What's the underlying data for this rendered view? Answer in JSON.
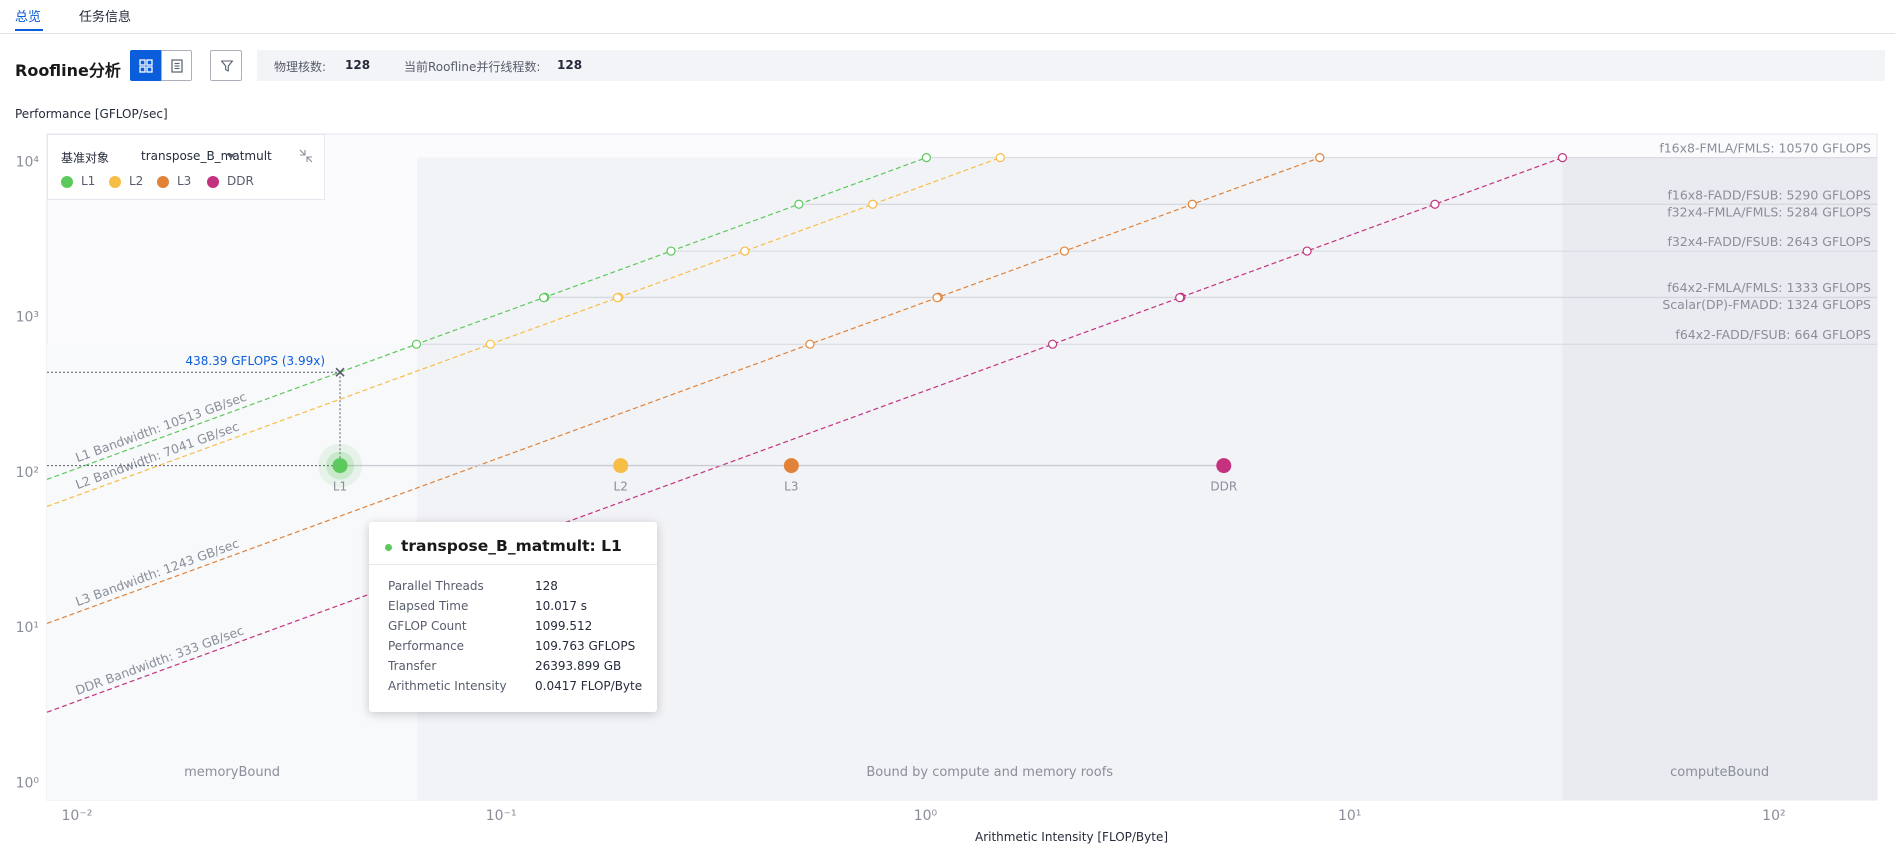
{
  "tabs": [
    {
      "label": "总览",
      "active": true
    },
    {
      "label": "任务信息",
      "active": false
    }
  ],
  "header": {
    "title": "Roofline分析",
    "view_buttons": [
      {
        "icon": "grid-view-icon",
        "active": true
      },
      {
        "icon": "list-view-icon",
        "active": false
      }
    ],
    "filter_icon": "filter-icon",
    "info": {
      "physical_cores_label": "物理核数:",
      "physical_cores_value": "128",
      "threads_label": "当前Roofline并行线程数:",
      "threads_value": "128"
    }
  },
  "legend": {
    "ref_label": "基准对象",
    "ref_value": "transpose_B_matmult",
    "collapse_icon": "collapse-icon",
    "items": [
      {
        "label": "L1",
        "color": "#5cc95c"
      },
      {
        "label": "L2",
        "color": "#f7be45"
      },
      {
        "label": "L3",
        "color": "#e08339"
      },
      {
        "label": "DDR",
        "color": "#c4327f"
      }
    ]
  },
  "tooltip": {
    "title": "transpose_B_matmult: L1",
    "dot_color": "#5cc95c",
    "rows": [
      {
        "key": "Parallel Threads",
        "value": "128"
      },
      {
        "key": "Elapsed Time",
        "value": "10.017 s"
      },
      {
        "key": "GFLOP Count",
        "value": "1099.512"
      },
      {
        "key": "Performance",
        "value": "109.763 GFLOPS"
      },
      {
        "key": "Transfer",
        "value": "26393.899 GB"
      },
      {
        "key": "Arithmetic Intensity",
        "value": "0.0417 FLOP/Byte"
      }
    ]
  },
  "chart_data": {
    "type": "scatter",
    "scale": "log-log",
    "xlabel": "Arithmetic Intensity [FLOP/Byte]",
    "ylabel": "Performance [GFLOP/sec]",
    "xlim": [
      0.0085,
      175
    ],
    "ylim": [
      0.77,
      15000
    ],
    "x_ticks": [
      {
        "value": 0.01,
        "label": "10⁻²"
      },
      {
        "value": 0.1,
        "label": "10⁻¹"
      },
      {
        "value": 1,
        "label": "10⁰"
      },
      {
        "value": 10,
        "label": "10¹"
      },
      {
        "value": 100,
        "label": "10²"
      }
    ],
    "y_ticks": [
      {
        "value": 1,
        "label": "10⁰"
      },
      {
        "value": 10,
        "label": "10¹"
      },
      {
        "value": 100,
        "label": "10²"
      },
      {
        "value": 1000,
        "label": "10³"
      },
      {
        "value": 10000,
        "label": "10⁴"
      }
    ],
    "bandwidths": [
      {
        "name": "L1",
        "label": "L1 Bandwidth: 10513 GB/sec",
        "gbps": 10513,
        "color": "#5cc95c"
      },
      {
        "name": "L2",
        "label": "L2 Bandwidth: 7041 GB/sec",
        "gbps": 7041,
        "color": "#f7be45"
      },
      {
        "name": "L3",
        "label": "L3 Bandwidth: 1243 GB/sec",
        "gbps": 1243,
        "color": "#e08339"
      },
      {
        "name": "DDR",
        "label": "DDR Bandwidth: 333 GB/sec",
        "gbps": 333,
        "color": "#c4327f"
      }
    ],
    "roofs": [
      {
        "label": "f16x8-FMLA/FMLS: 10570 GFLOPS",
        "gflops": 10570
      },
      {
        "label": "f16x8-FADD/FSUB: 5290 GFLOPS",
        "gflops": 5290
      },
      {
        "label": "f32x4-FMLA/FMLS: 5284 GFLOPS",
        "gflops": 5284
      },
      {
        "label": "f32x4-FADD/FSUB: 2643 GFLOPS",
        "gflops": 2643
      },
      {
        "label": "f64x2-FMLA/FMLS: 1333 GFLOPS",
        "gflops": 1333
      },
      {
        "label": "Scalar(DP)-FMADD: 1324 GFLOPS",
        "gflops": 1324
      },
      {
        "label": "f64x2-FADD/FSUB: 664 GFLOPS",
        "gflops": 664
      }
    ],
    "points": [
      {
        "name": "L1",
        "x": 0.0417,
        "y": 109.763,
        "color": "#5cc95c",
        "selected": true
      },
      {
        "name": "L2",
        "x": 0.1913,
        "y": 109.763,
        "color": "#f7be45"
      },
      {
        "name": "L3",
        "x": 0.483,
        "y": 109.763,
        "color": "#e08339"
      },
      {
        "name": "DDR",
        "x": 5.05,
        "y": 109.763,
        "color": "#c4327f"
      }
    ],
    "regions": [
      {
        "label": "memoryBound",
        "x_from": 0.0085,
        "x_to": 0.0634
      },
      {
        "label": "Bound by compute and memory roofs",
        "x_from": 0.0634,
        "x_to": 31.7
      },
      {
        "label": "computeBound",
        "x_from": 31.7,
        "x_to": 175
      }
    ],
    "annotation": {
      "label": "438.39 GFLOPS (3.99x)",
      "x": 0.0417,
      "y": 438.39
    }
  }
}
